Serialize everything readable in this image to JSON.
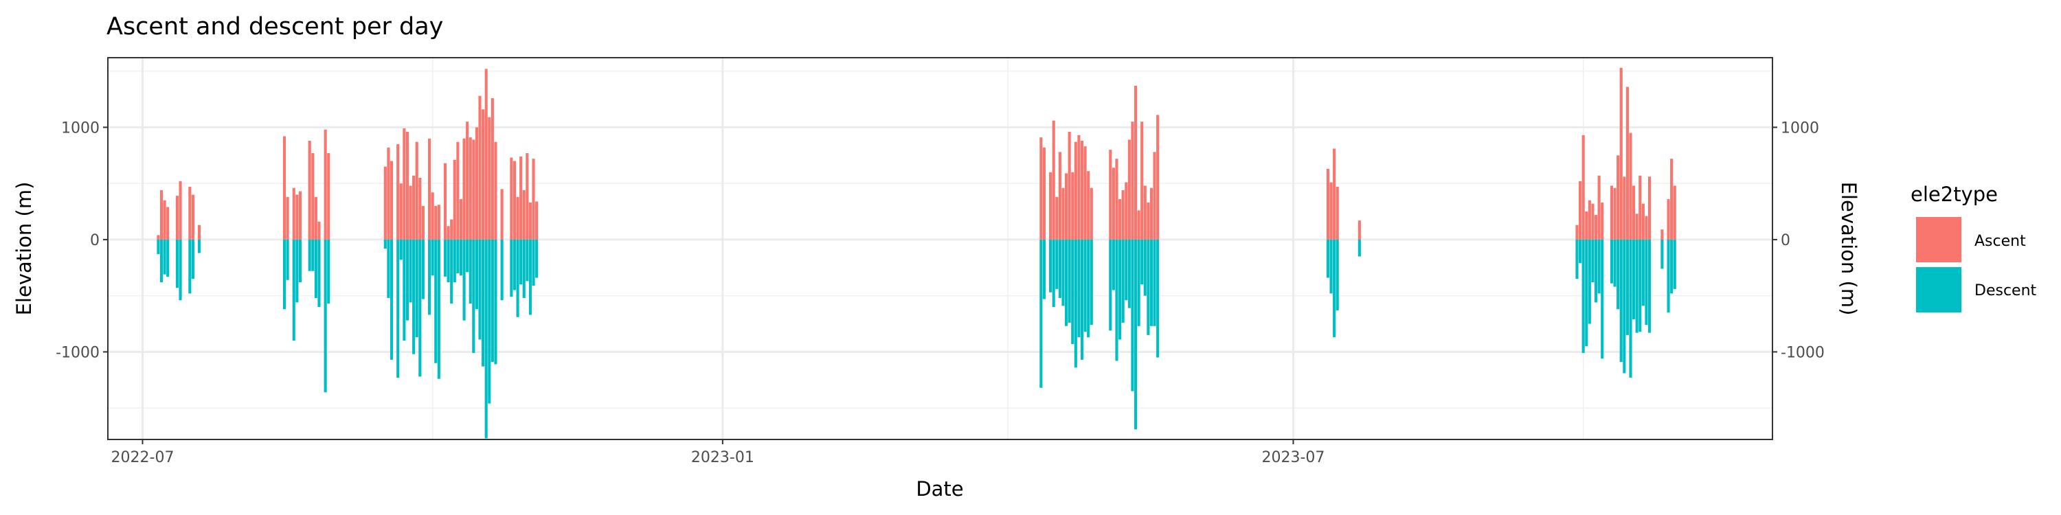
{
  "chart_data": {
    "type": "bar",
    "title": "Ascent and descent per day",
    "xlabel": "Date",
    "ylabel": "Elevation (m)",
    "ylabel_right": "Elevation (m)",
    "x_ticks": [
      "2022-07",
      "2023-01",
      "2023-07"
    ],
    "y_ticks": [
      -1000,
      0,
      1000
    ],
    "ylim": [
      -1780,
      1620
    ],
    "xlim": [
      "2022-06-20",
      "2023-11-30"
    ],
    "grid": true,
    "stacked": "diverging",
    "legend": {
      "title": "ele2type",
      "position": "right",
      "entries": [
        "Ascent",
        "Descent"
      ]
    },
    "colors": {
      "Ascent": "#F8766D",
      "Descent": "#00BFC4"
    },
    "series": [
      {
        "name": "Ascent",
        "points": [
          [
            "2022-07-06",
            40
          ],
          [
            "2022-07-07",
            440
          ],
          [
            "2022-07-08",
            350
          ],
          [
            "2022-07-09",
            290
          ],
          [
            "2022-07-12",
            390
          ],
          [
            "2022-07-13",
            520
          ],
          [
            "2022-07-16",
            470
          ],
          [
            "2022-07-17",
            400
          ],
          [
            "2022-07-19",
            130
          ],
          [
            "2022-08-15",
            920
          ],
          [
            "2022-08-16",
            380
          ],
          [
            "2022-08-18",
            460
          ],
          [
            "2022-08-19",
            400
          ],
          [
            "2022-08-20",
            430
          ],
          [
            "2022-08-23",
            880
          ],
          [
            "2022-08-24",
            770
          ],
          [
            "2022-08-25",
            380
          ],
          [
            "2022-08-26",
            160
          ],
          [
            "2022-08-28",
            980
          ],
          [
            "2022-08-29",
            770
          ],
          [
            "2022-09-16",
            650
          ],
          [
            "2022-09-17",
            820
          ],
          [
            "2022-09-18",
            700
          ],
          [
            "2022-09-20",
            850
          ],
          [
            "2022-09-21",
            500
          ],
          [
            "2022-09-22",
            990
          ],
          [
            "2022-09-23",
            960
          ],
          [
            "2022-09-24",
            480
          ],
          [
            "2022-09-25",
            570
          ],
          [
            "2022-09-26",
            870
          ],
          [
            "2022-09-27",
            550
          ],
          [
            "2022-09-28",
            300
          ],
          [
            "2022-09-30",
            900
          ],
          [
            "2022-10-01",
            420
          ],
          [
            "2022-10-02",
            300
          ],
          [
            "2022-10-03",
            310
          ],
          [
            "2022-10-05",
            680
          ],
          [
            "2022-10-06",
            120
          ],
          [
            "2022-10-07",
            180
          ],
          [
            "2022-10-08",
            710
          ],
          [
            "2022-10-09",
            870
          ],
          [
            "2022-10-10",
            360
          ],
          [
            "2022-10-11",
            900
          ],
          [
            "2022-10-12",
            1050
          ],
          [
            "2022-10-13",
            910
          ],
          [
            "2022-10-14",
            890
          ],
          [
            "2022-10-15",
            1000
          ],
          [
            "2022-10-16",
            1280
          ],
          [
            "2022-10-17",
            1160
          ],
          [
            "2022-10-18",
            1520
          ],
          [
            "2022-10-19",
            1090
          ],
          [
            "2022-10-20",
            1260
          ],
          [
            "2022-10-21",
            870
          ],
          [
            "2022-10-23",
            450
          ],
          [
            "2022-10-26",
            730
          ],
          [
            "2022-10-27",
            700
          ],
          [
            "2022-10-28",
            380
          ],
          [
            "2022-10-29",
            740
          ],
          [
            "2022-10-30",
            440
          ],
          [
            "2022-10-31",
            770
          ],
          [
            "2022-11-01",
            330
          ],
          [
            "2022-11-02",
            720
          ],
          [
            "2022-11-03",
            340
          ],
          [
            "2023-04-12",
            910
          ],
          [
            "2023-04-13",
            820
          ],
          [
            "2023-04-15",
            600
          ],
          [
            "2023-04-16",
            1060
          ],
          [
            "2023-04-17",
            380
          ],
          [
            "2023-04-18",
            780
          ],
          [
            "2023-04-19",
            460
          ],
          [
            "2023-04-20",
            590
          ],
          [
            "2023-04-21",
            960
          ],
          [
            "2023-04-22",
            600
          ],
          [
            "2023-04-23",
            870
          ],
          [
            "2023-04-24",
            930
          ],
          [
            "2023-04-25",
            880
          ],
          [
            "2023-04-26",
            830
          ],
          [
            "2023-04-27",
            610
          ],
          [
            "2023-04-28",
            460
          ],
          [
            "2023-05-04",
            800
          ],
          [
            "2023-05-05",
            640
          ],
          [
            "2023-05-06",
            720
          ],
          [
            "2023-05-07",
            360
          ],
          [
            "2023-05-08",
            440
          ],
          [
            "2023-05-09",
            510
          ],
          [
            "2023-05-10",
            890
          ],
          [
            "2023-05-11",
            1050
          ],
          [
            "2023-05-12",
            1370
          ],
          [
            "2023-05-13",
            260
          ],
          [
            "2023-05-14",
            1050
          ],
          [
            "2023-05-15",
            480
          ],
          [
            "2023-05-16",
            330
          ],
          [
            "2023-05-17",
            460
          ],
          [
            "2023-05-18",
            780
          ],
          [
            "2023-05-19",
            1110
          ],
          [
            "2023-07-12",
            630
          ],
          [
            "2023-07-13",
            510
          ],
          [
            "2023-07-14",
            810
          ],
          [
            "2023-07-15",
            470
          ],
          [
            "2023-07-22",
            170
          ],
          [
            "2023-09-29",
            130
          ],
          [
            "2023-09-30",
            520
          ],
          [
            "2023-10-01",
            930
          ],
          [
            "2023-10-02",
            250
          ],
          [
            "2023-10-03",
            350
          ],
          [
            "2023-10-04",
            320
          ],
          [
            "2023-10-05",
            220
          ],
          [
            "2023-10-06",
            570
          ],
          [
            "2023-10-07",
            330
          ],
          [
            "2023-10-10",
            480
          ],
          [
            "2023-10-11",
            460
          ],
          [
            "2023-10-12",
            750
          ],
          [
            "2023-10-13",
            1530
          ],
          [
            "2023-10-14",
            560
          ],
          [
            "2023-10-15",
            1360
          ],
          [
            "2023-10-16",
            950
          ],
          [
            "2023-10-17",
            480
          ],
          [
            "2023-10-18",
            230
          ],
          [
            "2023-10-19",
            570
          ],
          [
            "2023-10-20",
            320
          ],
          [
            "2023-10-21",
            210
          ],
          [
            "2023-10-22",
            560
          ],
          [
            "2023-10-26",
            90
          ],
          [
            "2023-10-28",
            360
          ],
          [
            "2023-10-29",
            720
          ],
          [
            "2023-10-30",
            480
          ]
        ]
      },
      {
        "name": "Descent",
        "points": [
          [
            "2022-07-06",
            -130
          ],
          [
            "2022-07-07",
            -380
          ],
          [
            "2022-07-08",
            -310
          ],
          [
            "2022-07-09",
            -330
          ],
          [
            "2022-07-12",
            -430
          ],
          [
            "2022-07-13",
            -540
          ],
          [
            "2022-07-16",
            -480
          ],
          [
            "2022-07-17",
            -350
          ],
          [
            "2022-07-19",
            -120
          ],
          [
            "2022-08-15",
            -620
          ],
          [
            "2022-08-16",
            -360
          ],
          [
            "2022-08-18",
            -900
          ],
          [
            "2022-08-19",
            -560
          ],
          [
            "2022-08-20",
            -380
          ],
          [
            "2022-08-23",
            -280
          ],
          [
            "2022-08-24",
            -280
          ],
          [
            "2022-08-25",
            -520
          ],
          [
            "2022-08-26",
            -600
          ],
          [
            "2022-08-28",
            -1360
          ],
          [
            "2022-08-29",
            -570
          ],
          [
            "2022-09-16",
            -80
          ],
          [
            "2022-09-17",
            -520
          ],
          [
            "2022-09-18",
            -1070
          ],
          [
            "2022-09-20",
            -1230
          ],
          [
            "2022-09-21",
            -180
          ],
          [
            "2022-09-22",
            -900
          ],
          [
            "2022-09-23",
            -720
          ],
          [
            "2022-09-24",
            -560
          ],
          [
            "2022-09-25",
            -1020
          ],
          [
            "2022-09-26",
            -870
          ],
          [
            "2022-09-27",
            -1220
          ],
          [
            "2022-09-28",
            -530
          ],
          [
            "2022-09-30",
            -670
          ],
          [
            "2022-10-01",
            -320
          ],
          [
            "2022-10-02",
            -1100
          ],
          [
            "2022-10-03",
            -1240
          ],
          [
            "2022-10-05",
            -330
          ],
          [
            "2022-10-06",
            -380
          ],
          [
            "2022-10-07",
            -570
          ],
          [
            "2022-10-08",
            -380
          ],
          [
            "2022-10-09",
            -300
          ],
          [
            "2022-10-10",
            -320
          ],
          [
            "2022-10-11",
            -720
          ],
          [
            "2022-10-12",
            -290
          ],
          [
            "2022-10-13",
            -570
          ],
          [
            "2022-10-14",
            -1010
          ],
          [
            "2022-10-15",
            -620
          ],
          [
            "2022-10-16",
            -890
          ],
          [
            "2022-10-17",
            -1130
          ],
          [
            "2022-10-18",
            -1770
          ],
          [
            "2022-10-19",
            -1460
          ],
          [
            "2022-10-20",
            -1090
          ],
          [
            "2022-10-21",
            -1110
          ],
          [
            "2022-10-23",
            -540
          ],
          [
            "2022-10-26",
            -510
          ],
          [
            "2022-10-27",
            -450
          ],
          [
            "2022-10-28",
            -690
          ],
          [
            "2022-10-29",
            -400
          ],
          [
            "2022-10-30",
            -520
          ],
          [
            "2022-10-31",
            -370
          ],
          [
            "2022-11-01",
            -670
          ],
          [
            "2022-11-02",
            -410
          ],
          [
            "2022-11-03",
            -340
          ],
          [
            "2023-04-12",
            -1320
          ],
          [
            "2023-04-13",
            -530
          ],
          [
            "2023-04-15",
            -470
          ],
          [
            "2023-04-16",
            -600
          ],
          [
            "2023-04-17",
            -440
          ],
          [
            "2023-04-18",
            -520
          ],
          [
            "2023-04-19",
            -590
          ],
          [
            "2023-04-20",
            -770
          ],
          [
            "2023-04-21",
            -740
          ],
          [
            "2023-04-22",
            -930
          ],
          [
            "2023-04-23",
            -1140
          ],
          [
            "2023-04-24",
            -870
          ],
          [
            "2023-04-25",
            -1070
          ],
          [
            "2023-04-26",
            -820
          ],
          [
            "2023-04-27",
            -870
          ],
          [
            "2023-04-28",
            -760
          ],
          [
            "2023-05-04",
            -810
          ],
          [
            "2023-05-05",
            -450
          ],
          [
            "2023-05-06",
            -1080
          ],
          [
            "2023-05-07",
            -890
          ],
          [
            "2023-05-08",
            -740
          ],
          [
            "2023-05-09",
            -540
          ],
          [
            "2023-05-10",
            -610
          ],
          [
            "2023-05-11",
            -1350
          ],
          [
            "2023-05-12",
            -1690
          ],
          [
            "2023-05-13",
            -770
          ],
          [
            "2023-05-14",
            -400
          ],
          [
            "2023-05-15",
            -500
          ],
          [
            "2023-05-16",
            -850
          ],
          [
            "2023-05-17",
            -770
          ],
          [
            "2023-05-18",
            -770
          ],
          [
            "2023-05-19",
            -1050
          ],
          [
            "2023-07-12",
            -340
          ],
          [
            "2023-07-13",
            -480
          ],
          [
            "2023-07-14",
            -870
          ],
          [
            "2023-07-15",
            -630
          ],
          [
            "2023-07-22",
            -150
          ],
          [
            "2023-09-29",
            -350
          ],
          [
            "2023-09-30",
            -210
          ],
          [
            "2023-10-01",
            -1010
          ],
          [
            "2023-10-02",
            -950
          ],
          [
            "2023-10-03",
            -750
          ],
          [
            "2023-10-04",
            -380
          ],
          [
            "2023-10-05",
            -560
          ],
          [
            "2023-10-06",
            -480
          ],
          [
            "2023-10-07",
            -1060
          ],
          [
            "2023-10-10",
            -390
          ],
          [
            "2023-10-11",
            -420
          ],
          [
            "2023-10-12",
            -620
          ],
          [
            "2023-10-13",
            -1090
          ],
          [
            "2023-10-14",
            -1190
          ],
          [
            "2023-10-15",
            -850
          ],
          [
            "2023-10-16",
            -1230
          ],
          [
            "2023-10-17",
            -710
          ],
          [
            "2023-10-18",
            -830
          ],
          [
            "2023-10-19",
            -820
          ],
          [
            "2023-10-20",
            -590
          ],
          [
            "2023-10-21",
            -760
          ],
          [
            "2023-10-22",
            -830
          ],
          [
            "2023-10-26",
            -260
          ],
          [
            "2023-10-28",
            -650
          ],
          [
            "2023-10-29",
            -480
          ],
          [
            "2023-10-30",
            -440
          ]
        ]
      }
    ]
  }
}
